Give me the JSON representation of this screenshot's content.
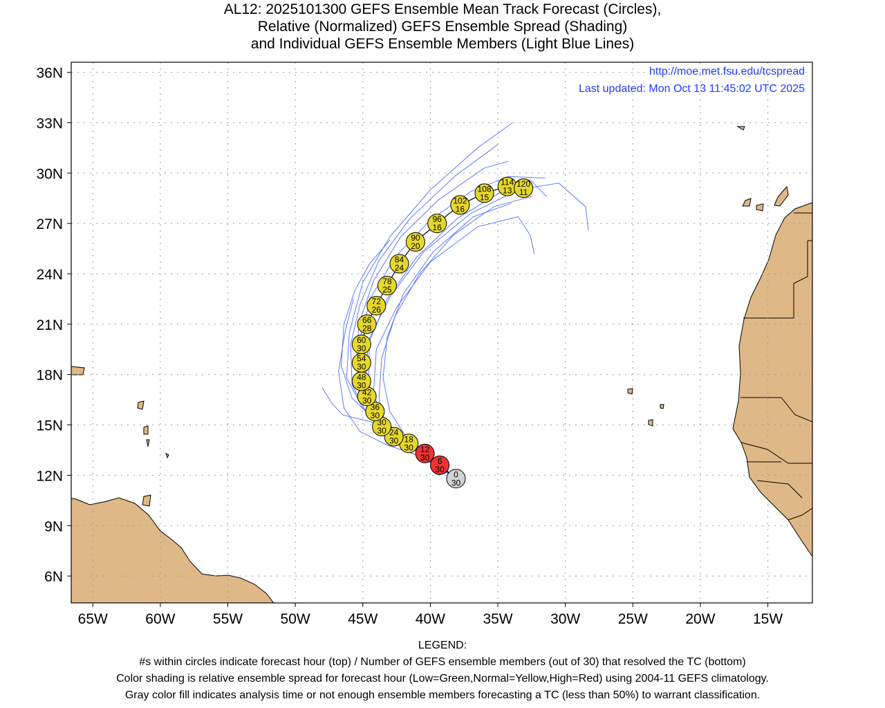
{
  "title_lines": [
    "AL12: 2025101300 GEFS Ensemble Mean Track Forecast (Circles),",
    "Relative (Normalized) GEFS Ensemble Spread (Shading)",
    "and Individual GEFS Ensemble Members (Light Blue Lines)"
  ],
  "url_text": "http://moe.met.fsu.edu/tcspread",
  "updated_text": "Last updated: Mon Oct 13 11:45:02 UTC 2025",
  "legend_lines": [
    "LEGEND:",
    "#s within circles indicate forecast hour (top) / Number of GEFS ensemble members (out of 30) that resolved the TC (bottom)",
    "Color shading is relative ensemble spread for forecast hour (Low=Green,Normal=Yellow,High=Red) using 2004-11 GEFS climatology.",
    "Gray color fill indicates analysis time or not enough ensemble members forecasting a TC (less than 50%) to warrant classification."
  ],
  "colors": {
    "gray": "#d3d3d3",
    "red": "#ee3333",
    "yellow": "#e6d82a",
    "member": "#4d6bff",
    "land": "#dfb887",
    "link": "#1f3cff"
  },
  "chart_data": {
    "type": "map-track",
    "xlim": [
      -66.6,
      -11.7
    ],
    "ylim": [
      4.4,
      36.6
    ],
    "x_ticks": [
      -65,
      -60,
      -55,
      -50,
      -45,
      -40,
      -35,
      -30,
      -25,
      -20,
      -15
    ],
    "x_tick_labels": [
      "65W",
      "60W",
      "55W",
      "50W",
      "45W",
      "40W",
      "35W",
      "30W",
      "25W",
      "20W",
      "15W"
    ],
    "y_ticks": [
      36,
      33,
      30,
      27,
      24,
      21,
      18,
      15,
      12,
      9,
      6
    ],
    "y_tick_labels": [
      "36N",
      "33N",
      "30N",
      "27N",
      "24N",
      "21N",
      "18N",
      "15N",
      "12N",
      "9N",
      "6N"
    ],
    "grid": true,
    "mean_track": [
      {
        "hour": "0",
        "members": "30",
        "lon": -38.1,
        "lat": 11.8,
        "spread": "gray"
      },
      {
        "hour": "6",
        "members": "30",
        "lon": -39.3,
        "lat": 12.6,
        "spread": "red"
      },
      {
        "hour": "12",
        "members": "30",
        "lon": -40.4,
        "lat": 13.3,
        "spread": "red"
      },
      {
        "hour": "18",
        "members": "30",
        "lon": -41.6,
        "lat": 13.9,
        "spread": "yellow"
      },
      {
        "hour": "24",
        "members": "30",
        "lon": -42.7,
        "lat": 14.3,
        "spread": "yellow"
      },
      {
        "hour": "30",
        "members": "30",
        "lon": -43.6,
        "lat": 14.9,
        "spread": "yellow"
      },
      {
        "hour": "36",
        "members": "30",
        "lon": -44.1,
        "lat": 15.8,
        "spread": "yellow"
      },
      {
        "hour": "42",
        "members": "30",
        "lon": -44.7,
        "lat": 16.7,
        "spread": "yellow"
      },
      {
        "hour": "48",
        "members": "30",
        "lon": -45.1,
        "lat": 17.6,
        "spread": "yellow"
      },
      {
        "hour": "54",
        "members": "30",
        "lon": -45.1,
        "lat": 18.7,
        "spread": "yellow"
      },
      {
        "hour": "60",
        "members": "30",
        "lon": -45.1,
        "lat": 19.8,
        "spread": "yellow"
      },
      {
        "hour": "66",
        "members": "28",
        "lon": -44.7,
        "lat": 21.0,
        "spread": "yellow"
      },
      {
        "hour": "72",
        "members": "26",
        "lon": -44.0,
        "lat": 22.1,
        "spread": "yellow"
      },
      {
        "hour": "78",
        "members": "25",
        "lon": -43.2,
        "lat": 23.3,
        "spread": "yellow"
      },
      {
        "hour": "84",
        "members": "24",
        "lon": -42.3,
        "lat": 24.6,
        "spread": "yellow"
      },
      {
        "hour": "90",
        "members": "20",
        "lon": -41.1,
        "lat": 25.9,
        "spread": "yellow"
      },
      {
        "hour": "96",
        "members": "16",
        "lon": -39.5,
        "lat": 27.0,
        "spread": "yellow"
      },
      {
        "hour": "102",
        "members": "16",
        "lon": -37.8,
        "lat": 28.1,
        "spread": "yellow"
      },
      {
        "hour": "108",
        "members": "15",
        "lon": -36.0,
        "lat": 28.8,
        "spread": "yellow"
      },
      {
        "hour": "114",
        "members": "13",
        "lon": -34.3,
        "lat": 29.2,
        "spread": "yellow"
      },
      {
        "hour": "120",
        "members": "11",
        "lon": -33.1,
        "lat": 29.1,
        "spread": "yellow"
      }
    ],
    "member_tracks": [
      [
        [
          -38.1,
          11.8
        ],
        [
          -40.5,
          13.2
        ],
        [
          -43,
          14.5
        ],
        [
          -45,
          16
        ],
        [
          -46.2,
          17.8
        ],
        [
          -46,
          20.5
        ],
        [
          -45,
          23.5
        ],
        [
          -43,
          26.2
        ],
        [
          -40,
          29
        ],
        [
          -36.5,
          31.5
        ],
        [
          -33.9,
          33
        ]
      ],
      [
        [
          -38.1,
          11.8
        ],
        [
          -40.8,
          13.4
        ],
        [
          -43.5,
          14.8
        ],
        [
          -45.8,
          16.6
        ],
        [
          -46.6,
          18.5
        ],
        [
          -46.4,
          21
        ],
        [
          -45.6,
          23
        ],
        [
          -44.5,
          24.6
        ],
        [
          -43,
          26
        ]
      ],
      [
        [
          -38.1,
          11.8
        ],
        [
          -40.3,
          13.1
        ],
        [
          -42.5,
          14.2
        ],
        [
          -44,
          15.6
        ],
        [
          -44.8,
          17.5
        ],
        [
          -44.6,
          20
        ],
        [
          -43,
          22.6
        ],
        [
          -40.5,
          25.3
        ],
        [
          -37,
          27.6
        ],
        [
          -33.5,
          29
        ],
        [
          -30.5,
          29.4
        ],
        [
          -28.5,
          28
        ],
        [
          -28.3,
          26.6
        ]
      ],
      [
        [
          -38.1,
          11.8
        ],
        [
          -40,
          12.9
        ],
        [
          -42,
          13.9
        ],
        [
          -43.5,
          15
        ],
        [
          -44.2,
          17
        ],
        [
          -44,
          19.5
        ],
        [
          -42.5,
          22
        ],
        [
          -40,
          24.7
        ],
        [
          -36.5,
          26.8
        ],
        [
          -33.5,
          27.4
        ],
        [
          -32.6,
          26.3
        ],
        [
          -32.3,
          25.2
        ]
      ],
      [
        [
          -38.1,
          11.8
        ],
        [
          -40.2,
          13
        ],
        [
          -42.3,
          14.1
        ],
        [
          -43.8,
          15.5
        ],
        [
          -44.6,
          17.5
        ],
        [
          -44.5,
          20
        ],
        [
          -43.2,
          22.5
        ],
        [
          -41,
          25
        ],
        [
          -38,
          27.3
        ],
        [
          -34.5,
          29
        ],
        [
          -32.6,
          29.6
        ],
        [
          -31.4,
          28.6
        ]
      ],
      [
        [
          -38.1,
          11.8
        ],
        [
          -40.7,
          13.6
        ],
        [
          -43.5,
          15
        ],
        [
          -46.5,
          15.6
        ],
        [
          -47.3,
          16.3
        ],
        [
          -48,
          17.2
        ]
      ],
      [
        [
          -38.1,
          11.8
        ],
        [
          -40.5,
          13.3
        ],
        [
          -42.8,
          14.4
        ],
        [
          -44.6,
          15.5
        ],
        [
          -45.8,
          17.4
        ],
        [
          -45.9,
          19.8
        ],
        [
          -45.2,
          22.2
        ],
        [
          -43.8,
          24.8
        ],
        [
          -41.5,
          27.3
        ],
        [
          -38.2,
          29.8
        ],
        [
          -35,
          31.7
        ]
      ],
      [
        [
          -38.1,
          11.8
        ],
        [
          -40.1,
          12.8
        ],
        [
          -42,
          13.6
        ],
        [
          -43.2,
          14.7
        ],
        [
          -43.8,
          16.6
        ],
        [
          -43.6,
          19
        ],
        [
          -42.6,
          21.5
        ],
        [
          -40.8,
          24
        ],
        [
          -38.3,
          26.3
        ],
        [
          -35.3,
          28
        ],
        [
          -32.5,
          28.6
        ]
      ],
      [
        [
          -38.1,
          11.8
        ],
        [
          -40.4,
          13.2
        ],
        [
          -42.6,
          14.2
        ],
        [
          -44.2,
          15.7
        ],
        [
          -45,
          17.8
        ],
        [
          -45.2,
          20.2
        ],
        [
          -44.4,
          22.6
        ],
        [
          -42.6,
          25
        ],
        [
          -40,
          27.2
        ],
        [
          -37,
          28.9
        ],
        [
          -34.2,
          29.8
        ],
        [
          -31.5,
          29.7
        ]
      ],
      [
        [
          -38.1,
          11.8
        ],
        [
          -40.6,
          13.1
        ],
        [
          -43.2,
          13.8
        ],
        [
          -45.2,
          14.6
        ],
        [
          -46.4,
          16
        ],
        [
          -46.8,
          18.2
        ],
        [
          -46.3,
          20.6
        ],
        [
          -45.7,
          22.5
        ]
      ],
      [
        [
          -38.1,
          11.8
        ],
        [
          -40,
          13.2
        ],
        [
          -41.8,
          14.3
        ],
        [
          -43,
          15.8
        ],
        [
          -43.5,
          17.8
        ],
        [
          -43.2,
          20.2
        ],
        [
          -42,
          22.8
        ],
        [
          -39.8,
          25.3
        ],
        [
          -36.8,
          27.4
        ],
        [
          -34,
          28.2
        ]
      ],
      [
        [
          -38.1,
          11.8
        ],
        [
          -40.6,
          13.5
        ],
        [
          -42.9,
          14.9
        ],
        [
          -44.9,
          16.4
        ],
        [
          -45.5,
          18.5
        ],
        [
          -45.3,
          21
        ],
        [
          -44.2,
          23.6
        ],
        [
          -42.2,
          26.2
        ],
        [
          -39.4,
          28.4
        ],
        [
          -36,
          30.3
        ],
        [
          -34.2,
          30.7
        ]
      ]
    ]
  }
}
